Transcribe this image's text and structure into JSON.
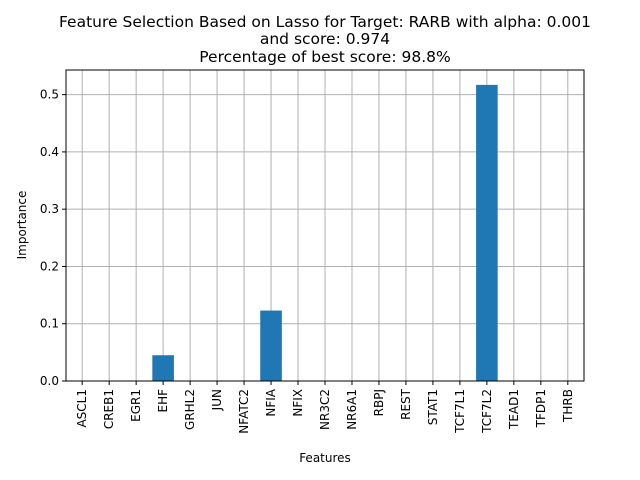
{
  "chart_data": {
    "type": "bar",
    "title_lines": [
      "Feature Selection Based on Lasso for Target: RARB with alpha: 0.001",
      "and score: 0.974",
      "Percentage of best score: 98.8%"
    ],
    "xlabel": "Features",
    "ylabel": "Importance",
    "categories": [
      "ASCL1",
      "CREB1",
      "EGR1",
      "EHF",
      "GRHL2",
      "JUN",
      "NFATC2",
      "NFIA",
      "NFIX",
      "NR3C2",
      "NR6A1",
      "RBPJ",
      "REST",
      "STAT1",
      "TCF7L1",
      "TCF7L2",
      "TEAD1",
      "TFDP1",
      "THRB"
    ],
    "values": [
      0,
      0,
      0,
      0.045,
      0,
      0,
      0,
      0.123,
      0,
      0,
      0,
      0,
      0,
      0,
      0,
      0.517,
      0,
      0,
      0
    ],
    "ylim": [
      0,
      0.543
    ],
    "yticks": [
      0.0,
      0.1,
      0.2,
      0.3,
      0.4,
      0.5
    ],
    "ytick_labels": [
      "0.0",
      "0.1",
      "0.2",
      "0.3",
      "0.4",
      "0.5"
    ],
    "grid": true,
    "bar_color": "#1f77b4"
  }
}
